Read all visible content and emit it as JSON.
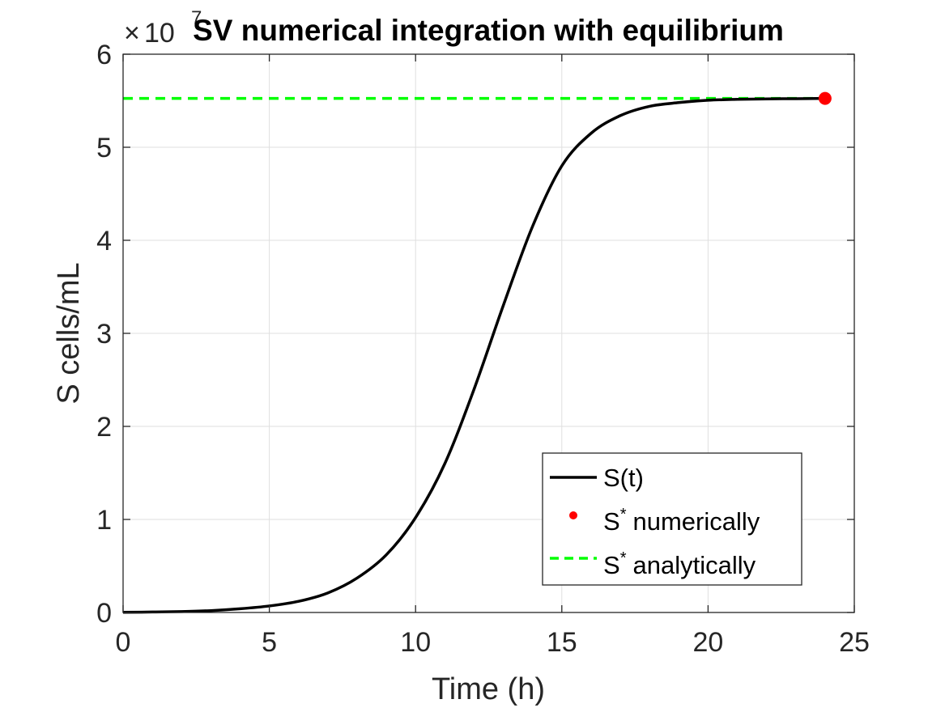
{
  "chart_data": {
    "type": "line",
    "title": "SV numerical integration with equilibrium",
    "xlabel": "Time (h)",
    "ylabel": "S cells/mL",
    "y_exponent_label": {
      "base": "10",
      "exponent": "7"
    },
    "xlim": [
      0,
      25
    ],
    "ylim": [
      0,
      6
    ],
    "y_scale_factor": 10000000,
    "x_ticks": [
      0,
      5,
      10,
      15,
      20,
      25
    ],
    "x_tick_labels": [
      "0",
      "5",
      "10",
      "15",
      "20",
      "25"
    ],
    "y_ticks": [
      0,
      1,
      2,
      3,
      4,
      5,
      6
    ],
    "y_tick_labels": [
      "0",
      "1",
      "2",
      "3",
      "4",
      "5",
      "6"
    ],
    "grid": true,
    "legend_position": "bottom-right",
    "series": [
      {
        "name": "S(t)",
        "kind": "line",
        "color": "#000000",
        "x": [
          0,
          1,
          2,
          3,
          4,
          5,
          6,
          7,
          8,
          9,
          10,
          11,
          12,
          13,
          14,
          15,
          16,
          17,
          18,
          19,
          20,
          21,
          22,
          23,
          24
        ],
        "y": [
          0.002,
          0.005,
          0.01,
          0.02,
          0.04,
          0.07,
          0.12,
          0.21,
          0.37,
          0.62,
          1.02,
          1.6,
          2.4,
          3.3,
          4.15,
          4.8,
          5.15,
          5.34,
          5.44,
          5.48,
          5.505,
          5.515,
          5.52,
          5.522,
          5.525
        ]
      },
      {
        "name": "S",
        "name_sup": "*",
        "name_suffix": "numerically",
        "kind": "point",
        "color": "#ff0000",
        "x": [
          24
        ],
        "y": [
          5.525
        ]
      },
      {
        "name": "S",
        "name_sup": "*",
        "name_suffix": "analytically",
        "kind": "dashed-line",
        "color": "#00ff00",
        "x": [
          0,
          24
        ],
        "y": [
          5.525,
          5.525
        ]
      }
    ]
  },
  "colors": {
    "axis": "#262626",
    "grid": "#dfdfdf",
    "title": "#000000",
    "background": "#ffffff"
  }
}
